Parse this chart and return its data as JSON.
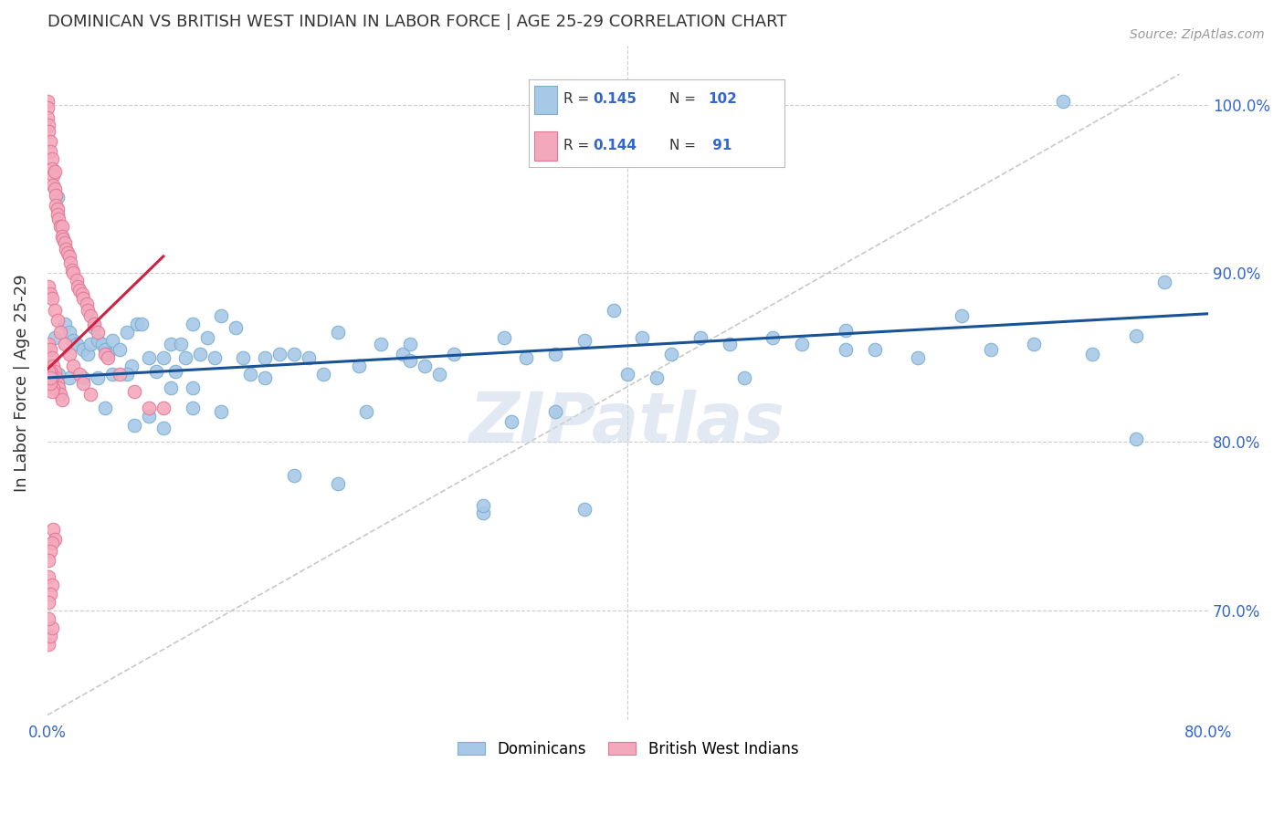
{
  "title": "DOMINICAN VS BRITISH WEST INDIAN IN LABOR FORCE | AGE 25-29 CORRELATION CHART",
  "source": "Source: ZipAtlas.com",
  "ylabel": "In Labor Force | Age 25-29",
  "xlim": [
    0.0,
    0.8
  ],
  "ylim": [
    0.635,
    1.035
  ],
  "xticks": [
    0.0,
    0.1,
    0.2,
    0.3,
    0.4,
    0.5,
    0.6,
    0.7,
    0.8
  ],
  "yticks": [
    0.7,
    0.8,
    0.9,
    1.0
  ],
  "yticklabels_right": [
    "70.0%",
    "80.0%",
    "90.0%",
    "100.0%"
  ],
  "blue_color": "#a8c8e8",
  "blue_edge_color": "#7aaecc",
  "pink_color": "#f4a8bc",
  "pink_edge_color": "#e07898",
  "blue_line_color": "#1a5296",
  "pink_line_color": "#cc2244",
  "ref_line_color": "#c8c8c8",
  "text_color": "#3366cc",
  "title_color": "#333333",
  "watermark": "ZIPatlas",
  "blue_dots_x": [
    0.005,
    0.007,
    0.012,
    0.015,
    0.018,
    0.02,
    0.025,
    0.028,
    0.03,
    0.032,
    0.035,
    0.038,
    0.04,
    0.042,
    0.045,
    0.05,
    0.055,
    0.058,
    0.062,
    0.065,
    0.07,
    0.075,
    0.08,
    0.085,
    0.088,
    0.092,
    0.095,
    0.1,
    0.105,
    0.11,
    0.115,
    0.12,
    0.13,
    0.135,
    0.14,
    0.15,
    0.16,
    0.17,
    0.18,
    0.19,
    0.2,
    0.215,
    0.23,
    0.245,
    0.26,
    0.28,
    0.3,
    0.315,
    0.33,
    0.35,
    0.37,
    0.39,
    0.41,
    0.43,
    0.45,
    0.47,
    0.5,
    0.52,
    0.55,
    0.57,
    0.6,
    0.63,
    0.65,
    0.68,
    0.7,
    0.72,
    0.75,
    0.77,
    0.35,
    0.4,
    0.2,
    0.25,
    0.3,
    0.1,
    0.08,
    0.06,
    0.04,
    0.32,
    0.27,
    0.22,
    0.17,
    0.12,
    0.07,
    0.55,
    0.48,
    0.42,
    0.37,
    0.1,
    0.15,
    0.085,
    0.055,
    0.045,
    0.035,
    0.025,
    0.015,
    0.008,
    0.003,
    0.001,
    0.0,
    0.25,
    0.75
  ],
  "blue_dots_y": [
    0.862,
    0.945,
    0.87,
    0.865,
    0.86,
    0.858,
    0.855,
    0.852,
    0.858,
    0.868,
    0.86,
    0.858,
    0.855,
    0.852,
    0.86,
    0.855,
    0.865,
    0.845,
    0.87,
    0.87,
    0.85,
    0.842,
    0.85,
    0.858,
    0.842,
    0.858,
    0.85,
    0.87,
    0.852,
    0.862,
    0.85,
    0.875,
    0.868,
    0.85,
    0.84,
    0.85,
    0.852,
    0.852,
    0.85,
    0.84,
    0.865,
    0.845,
    0.858,
    0.852,
    0.845,
    0.852,
    0.758,
    0.862,
    0.85,
    0.852,
    0.86,
    0.878,
    0.862,
    0.852,
    0.862,
    0.858,
    0.862,
    0.858,
    0.866,
    0.855,
    0.85,
    0.875,
    0.855,
    0.858,
    1.002,
    0.852,
    0.802,
    0.895,
    0.818,
    0.84,
    0.775,
    0.858,
    0.762,
    0.82,
    0.808,
    0.81,
    0.82,
    0.812,
    0.84,
    0.818,
    0.78,
    0.818,
    0.815,
    0.855,
    0.838,
    0.838,
    0.76,
    0.832,
    0.838,
    0.832,
    0.84,
    0.84,
    0.838,
    0.838,
    0.838,
    0.84,
    0.842,
    0.845,
    0.845,
    0.848,
    0.863
  ],
  "pink_dots_x": [
    0.0,
    0.0,
    0.0,
    0.001,
    0.001,
    0.002,
    0.002,
    0.003,
    0.003,
    0.004,
    0.004,
    0.005,
    0.005,
    0.006,
    0.006,
    0.007,
    0.007,
    0.008,
    0.009,
    0.01,
    0.01,
    0.011,
    0.012,
    0.013,
    0.014,
    0.015,
    0.016,
    0.017,
    0.018,
    0.02,
    0.021,
    0.022,
    0.024,
    0.025,
    0.027,
    0.028,
    0.03,
    0.032,
    0.035,
    0.04,
    0.042,
    0.05,
    0.06,
    0.07,
    0.08,
    0.001,
    0.002,
    0.003,
    0.005,
    0.007,
    0.009,
    0.012,
    0.015,
    0.018,
    0.022,
    0.025,
    0.03,
    0.001,
    0.002,
    0.003,
    0.004,
    0.005,
    0.006,
    0.007,
    0.008,
    0.009,
    0.01,
    0.002,
    0.003,
    0.004,
    0.001,
    0.002,
    0.003,
    0.001,
    0.002,
    0.001,
    0.002,
    0.001,
    0.003,
    0.002,
    0.001,
    0.004,
    0.005,
    0.003,
    0.002,
    0.001,
    0.001,
    0.002,
    0.003,
    0.001
  ],
  "pink_dots_y": [
    1.002,
    0.998,
    0.992,
    0.988,
    0.984,
    0.978,
    0.972,
    0.968,
    0.962,
    0.958,
    0.952,
    0.96,
    0.95,
    0.946,
    0.94,
    0.938,
    0.935,
    0.932,
    0.928,
    0.928,
    0.922,
    0.92,
    0.918,
    0.914,
    0.912,
    0.91,
    0.906,
    0.902,
    0.9,
    0.896,
    0.892,
    0.89,
    0.888,
    0.885,
    0.882,
    0.878,
    0.875,
    0.87,
    0.865,
    0.852,
    0.85,
    0.84,
    0.83,
    0.82,
    0.82,
    0.892,
    0.888,
    0.885,
    0.878,
    0.872,
    0.865,
    0.858,
    0.852,
    0.845,
    0.84,
    0.835,
    0.828,
    0.858,
    0.855,
    0.85,
    0.845,
    0.842,
    0.838,
    0.835,
    0.832,
    0.828,
    0.825,
    0.842,
    0.838,
    0.832,
    0.838,
    0.835,
    0.83,
    0.84,
    0.835,
    0.842,
    0.838,
    0.72,
    0.715,
    0.71,
    0.705,
    0.748,
    0.742,
    0.74,
    0.735,
    0.73,
    0.68,
    0.685,
    0.69,
    0.695
  ],
  "blue_trend_x": [
    0.0,
    0.8
  ],
  "blue_trend_y": [
    0.838,
    0.876
  ],
  "pink_trend_x": [
    0.0,
    0.08
  ],
  "pink_trend_y": [
    0.843,
    0.91
  ],
  "ref_line_x": [
    0.0,
    0.78
  ],
  "ref_line_y": [
    0.638,
    1.018
  ]
}
